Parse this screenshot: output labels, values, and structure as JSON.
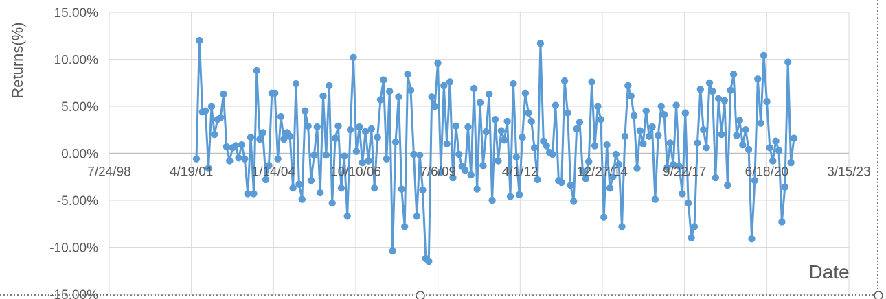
{
  "chart_data": {
    "type": "line",
    "title": "",
    "xlabel": "Date",
    "ylabel": "Returns(%)",
    "x_tick_labels": [
      "7/24/98",
      "4/19/01",
      "1/14/04",
      "10/10/06",
      "7/6/09",
      "4/1/12",
      "12/27/14",
      "9/22/17",
      "6/18/20",
      "3/15/23"
    ],
    "y_tick_labels": [
      "15.00%",
      "10.00%",
      "5.00%",
      "0.00%",
      "-5.00%",
      "-10.00%",
      "-15.00%"
    ],
    "xlim": [
      "1998-07-24",
      "2023-03-15"
    ],
    "ylim": [
      -15,
      15
    ],
    "grid": true,
    "legend": "none",
    "series_color": "#5b9bd5",
    "series": [
      {
        "values": [
          -0.6,
          12.0,
          4.4,
          4.5,
          -1.6,
          5.0,
          2.0,
          3.6,
          3.8,
          6.3,
          0.7,
          -0.8,
          0.6,
          0.8,
          -0.5,
          0.9,
          -0.6,
          -4.3,
          1.7,
          -4.3,
          8.8,
          1.5,
          2.2,
          -2.8,
          -1.3,
          6.4,
          6.4,
          -0.6,
          3.9,
          1.5,
          2.2,
          1.8,
          -3.7,
          7.4,
          -3.3,
          -4.9,
          4.5,
          2.9,
          -2.9,
          -0.2,
          2.8,
          -4.2,
          6.1,
          -0.2,
          7.2,
          -5.3,
          1.6,
          2.9,
          -3.7,
          -0.3,
          -6.7,
          2.5,
          10.2,
          0.2,
          2.8,
          -1.0,
          2.3,
          -0.8,
          2.6,
          -3.7,
          1.7,
          5.7,
          7.8,
          -0.6,
          6.6,
          -10.4,
          1.2,
          6.0,
          -3.8,
          -7.8,
          8.4,
          6.7,
          -0.1,
          -6.7,
          -0.2,
          -3.9,
          -11.2,
          -11.5,
          6.0,
          5.0,
          9.6,
          -2.0,
          7.2,
          1.0,
          7.6,
          -2.6,
          2.9,
          -0.1,
          -1.4,
          -1.8,
          2.8,
          -2.3,
          6.9,
          -3.8,
          5.4,
          -1.3,
          2.3,
          6.3,
          -5.0,
          3.6,
          -0.8,
          2.4,
          1.4,
          3.4,
          -4.6,
          7.4,
          -0.4,
          -4.4,
          1.7,
          6.4,
          4.3,
          3.4,
          0.6,
          -2.8,
          11.7,
          1.3,
          0.8,
          0.1,
          -0.1,
          5.1,
          -2.9,
          -3.1,
          7.7,
          4.3,
          -3.4,
          -5.1,
          2.6,
          3.3,
          -1.9,
          -2.7,
          -0.9,
          7.6,
          0.8,
          5.0,
          3.6,
          -6.8,
          0.9,
          -3.7,
          -2.5,
          -0.1,
          -1.2,
          -7.8,
          1.8,
          7.2,
          6.1,
          4.0,
          -1.6,
          2.4,
          1.0,
          4.5,
          1.8,
          2.8,
          -4.9,
          1.9,
          5.0,
          4.1,
          -1.5,
          1.1,
          -1.2,
          5.1,
          -1.4,
          -4.3,
          4.3,
          -5.3,
          -9.0,
          -7.8,
          1.1,
          6.8,
          2.5,
          0.6,
          7.5,
          6.6,
          -2.6,
          5.8,
          2.0,
          5.6,
          -3.4,
          6.7,
          8.4,
          1.9,
          3.5,
          0.9,
          2.5,
          0.4,
          -9.1,
          -2.9,
          7.9,
          3.2,
          10.4,
          5.5,
          0.6,
          -0.8,
          1.3,
          0.3,
          -7.3,
          -3.6,
          9.7,
          -1.0,
          1.6
        ]
      }
    ]
  }
}
